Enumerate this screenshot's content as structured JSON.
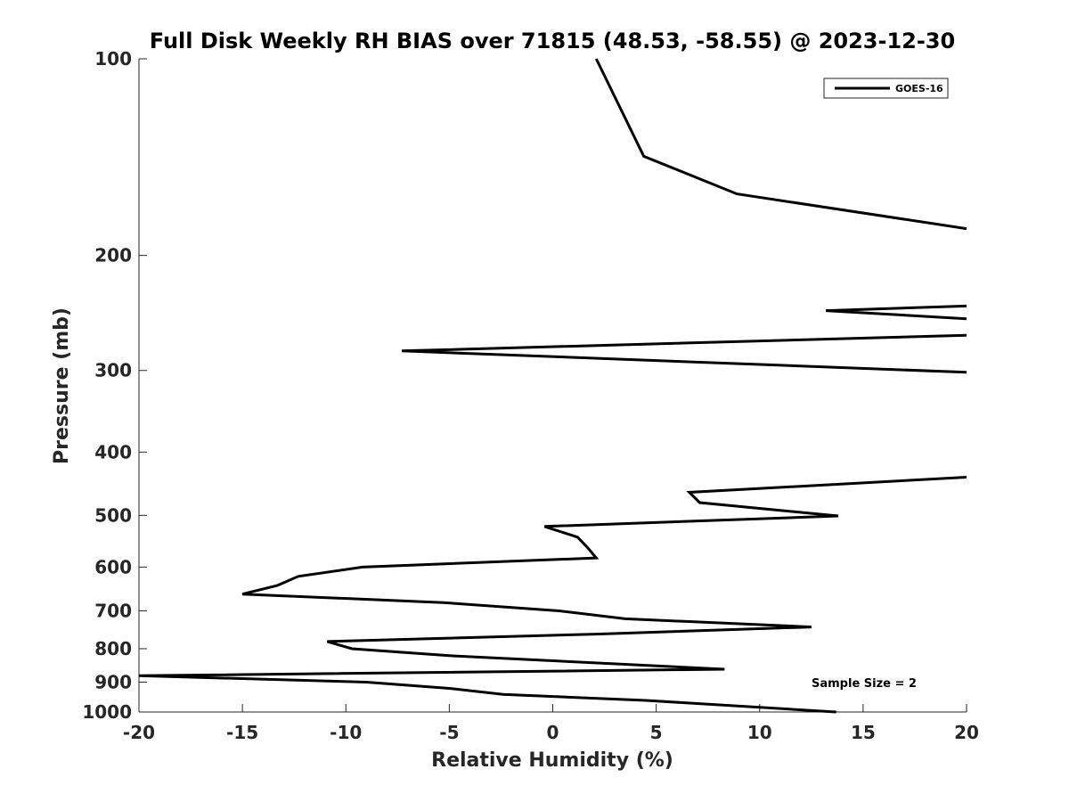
{
  "chart_data": {
    "type": "line",
    "title": "Full Disk Weekly RH BIAS over 71815 (48.53, -58.55) @ 2023-12-30",
    "xlabel": "Relative Humidity (%)",
    "ylabel": "Pressure (mb)",
    "xlim": [
      -20,
      20
    ],
    "ylim": [
      100,
      1000
    ],
    "y_scale": "log",
    "y_reversed": true,
    "grid": false,
    "legend_position": "top-right",
    "x_ticks": [
      "-20",
      "-15",
      "-10",
      "-5",
      "0",
      "5",
      "10",
      "15",
      "20"
    ],
    "y_ticks": [
      "100",
      "200",
      "300",
      "400",
      "500",
      "600",
      "700",
      "800",
      "900",
      "1000"
    ],
    "annotation": "Sample Size = 2",
    "series": [
      {
        "name": "GOES-16",
        "color": "#000000",
        "points": [
          [
            2.1,
            100
          ],
          [
            4.4,
            141
          ],
          [
            8.9,
            161
          ],
          [
            20,
            182
          ],
          null,
          [
            20,
            239
          ],
          [
            13.2,
            243
          ],
          [
            20,
            250
          ],
          null,
          [
            20,
            265
          ],
          [
            -7.3,
            280
          ],
          [
            20,
            302
          ],
          null,
          [
            20,
            437
          ],
          [
            6.6,
            461
          ],
          [
            7.1,
            478
          ],
          [
            13.8,
            501
          ],
          [
            -0.4,
            520
          ],
          [
            1.2,
            540
          ],
          [
            1.7,
            561
          ],
          [
            2.1,
            581
          ],
          [
            -9.2,
            600
          ],
          [
            -12.3,
            620
          ],
          [
            -13.3,
            640
          ],
          [
            -15.0,
            660
          ],
          [
            -5.3,
            680
          ],
          [
            0.3,
            700
          ],
          [
            3.5,
            720
          ],
          [
            12.5,
            741
          ],
          [
            2.1,
            760
          ],
          [
            -10.9,
            780
          ],
          [
            -9.7,
            800
          ],
          [
            -5.0,
            820
          ],
          [
            8.3,
            860
          ],
          [
            -20,
            880
          ],
          [
            -9.0,
            900
          ],
          [
            -5.0,
            920
          ],
          [
            -2.4,
            940
          ],
          [
            4.5,
            960
          ],
          [
            13.7,
            1000
          ]
        ]
      }
    ]
  }
}
